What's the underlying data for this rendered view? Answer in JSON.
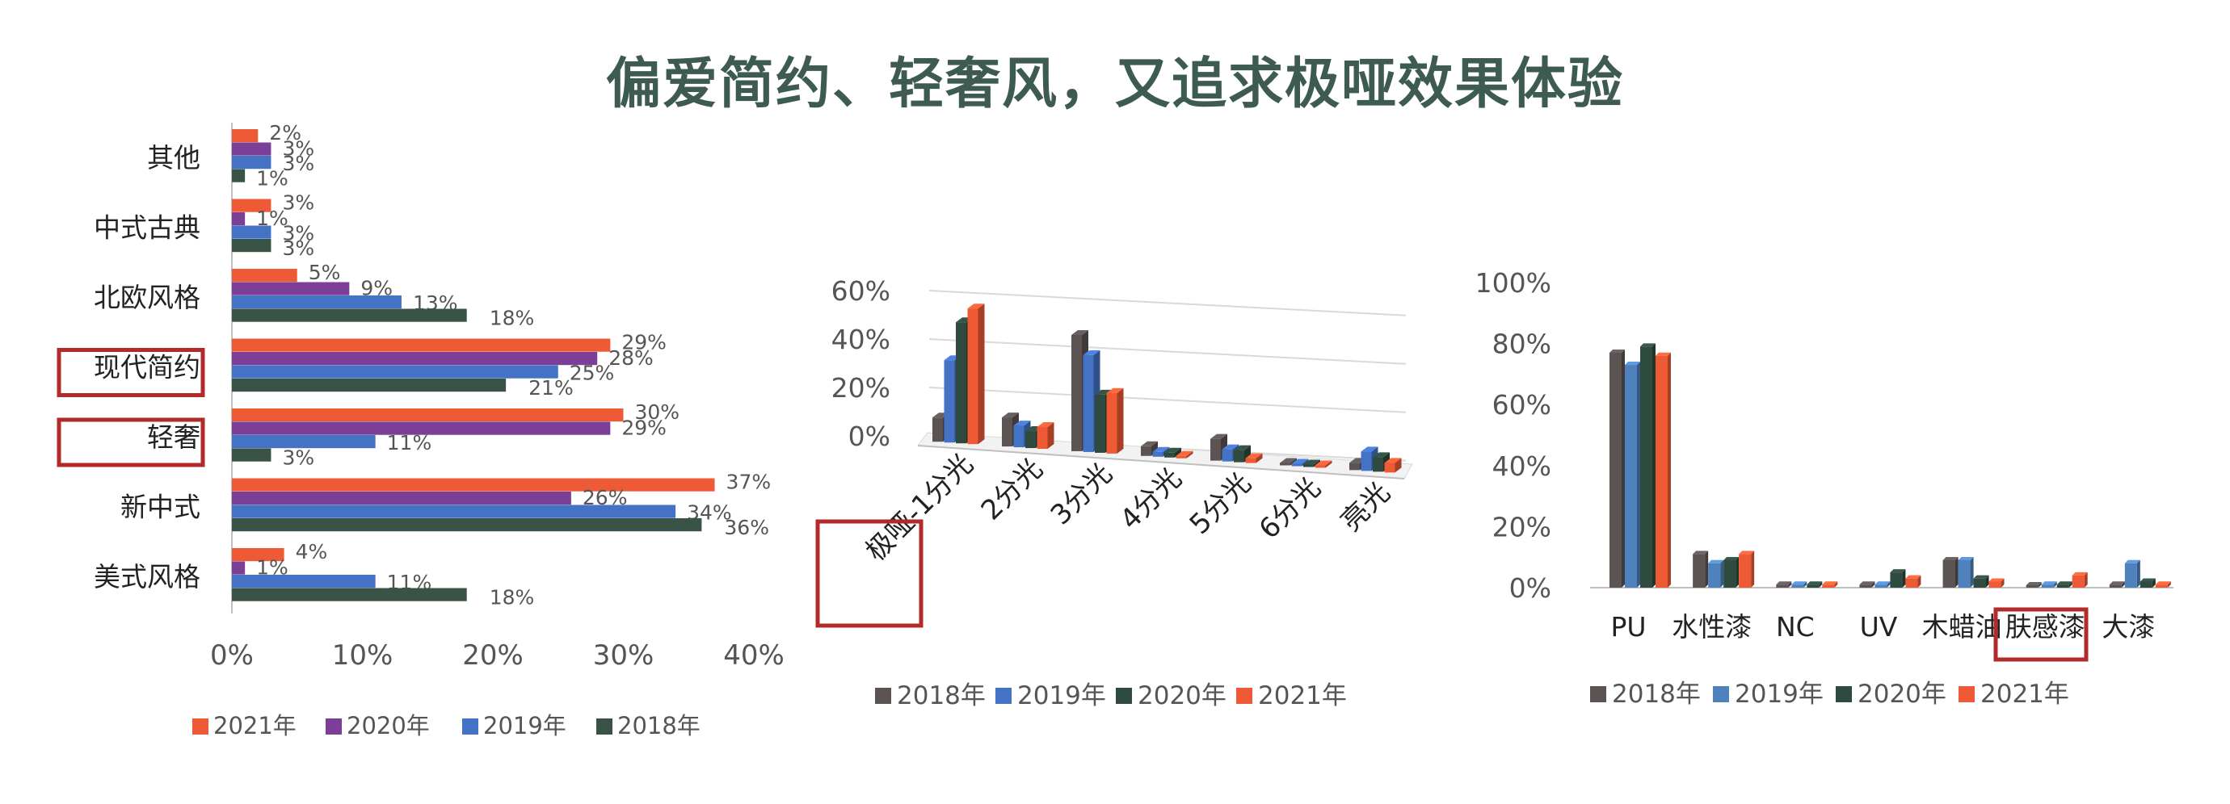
{
  "title": "偏爱简约、轻奢风，又追求极哑效果体验",
  "chart_data": [
    {
      "type": "bar",
      "orientation": "horizontal",
      "categories": [
        "其他",
        "中式古典",
        "北欧风格",
        "现代简约",
        "轻奢",
        "新中式",
        "美式风格"
      ],
      "series": [
        {
          "name": "2021年",
          "color": "#ee5a35",
          "values": [
            2,
            3,
            5,
            29,
            30,
            37,
            4
          ],
          "labels": [
            "2%",
            "3%",
            "5%",
            "29%",
            "30%",
            "37%",
            "4%"
          ]
        },
        {
          "name": "2020年",
          "color": "#7b3f98",
          "values": [
            3,
            1,
            9,
            28,
            29,
            26,
            1
          ],
          "labels": [
            "3%",
            "1%",
            "9%",
            "28%",
            "29%",
            "26%",
            "1%"
          ]
        },
        {
          "name": "2019年",
          "color": "#4472c4",
          "values": [
            3,
            3,
            13,
            25,
            11,
            34,
            11
          ],
          "labels": [
            "3%",
            "3%",
            "13%",
            "25%",
            "11%",
            "34%",
            "11%"
          ]
        },
        {
          "name": "2018年",
          "color": "#3a5347",
          "values": [
            1,
            3,
            18,
            21,
            3,
            36,
            18
          ],
          "labels": [
            "1%",
            "3%",
            "18%",
            "21%",
            "3%",
            "36%",
            "18%"
          ]
        }
      ],
      "xlim": [
        0,
        40
      ],
      "xticks": [
        "0%",
        "10%",
        "20%",
        "30%",
        "40%"
      ],
      "xtick_values": [
        0,
        10,
        20,
        30,
        40
      ],
      "highlighted_categories": [
        "现代简约",
        "轻奢"
      ],
      "legend_position": "bottom",
      "highlight_color": "#b22a2a"
    },
    {
      "type": "bar",
      "variant": "3d-clustered",
      "categories": [
        "极哑-1分光",
        "2分光",
        "3分光",
        "4分光",
        "5分光",
        "6分光",
        "亮光"
      ],
      "series": [
        {
          "name": "2018年",
          "color": "#5b5453",
          "values": [
            10,
            12,
            48,
            4,
            9,
            1,
            3
          ]
        },
        {
          "name": "2019年",
          "color": "#4472c4",
          "values": [
            34,
            9,
            40,
            2,
            5,
            1,
            8
          ]
        },
        {
          "name": "2020年",
          "color": "#2f4a3f",
          "values": [
            50,
            7,
            24,
            2,
            5,
            1,
            6
          ]
        },
        {
          "name": "2021年",
          "color": "#ee5a35",
          "values": [
            56,
            9,
            25,
            1,
            2,
            1,
            4
          ]
        }
      ],
      "ylim": [
        0,
        60
      ],
      "yticks": [
        "0%",
        "20%",
        "40%",
        "60%"
      ],
      "ytick_values": [
        0,
        20,
        40,
        60
      ],
      "highlighted_categories": [
        "极哑-1分光"
      ],
      "legend_position": "bottom",
      "highlight_color": "#b22a2a"
    },
    {
      "type": "bar",
      "categories": [
        "PU",
        "水性漆",
        "NC",
        "UV",
        "木蜡油",
        "肤感漆",
        "大漆"
      ],
      "series": [
        {
          "name": "2018年",
          "color": "#5b5453",
          "values": [
            77,
            11,
            1,
            1,
            9,
            0,
            1
          ]
        },
        {
          "name": "2019年",
          "color": "#4f81bd",
          "values": [
            73,
            8,
            1,
            1,
            9,
            1,
            8
          ]
        },
        {
          "name": "2020年",
          "color": "#2f4a3f",
          "values": [
            79,
            9,
            1,
            5,
            3,
            1,
            2
          ]
        },
        {
          "name": "2021年",
          "color": "#ee5a35",
          "values": [
            76,
            11,
            1,
            3,
            2,
            4,
            1
          ]
        }
      ],
      "ylim": [
        0,
        100
      ],
      "yticks": [
        "0%",
        "20%",
        "40%",
        "60%",
        "80%",
        "100%"
      ],
      "ytick_values": [
        0,
        20,
        40,
        60,
        80,
        100
      ],
      "highlighted_categories": [
        "肤感漆"
      ],
      "legend_position": "bottom",
      "highlight_color": "#b22a2a"
    }
  ]
}
